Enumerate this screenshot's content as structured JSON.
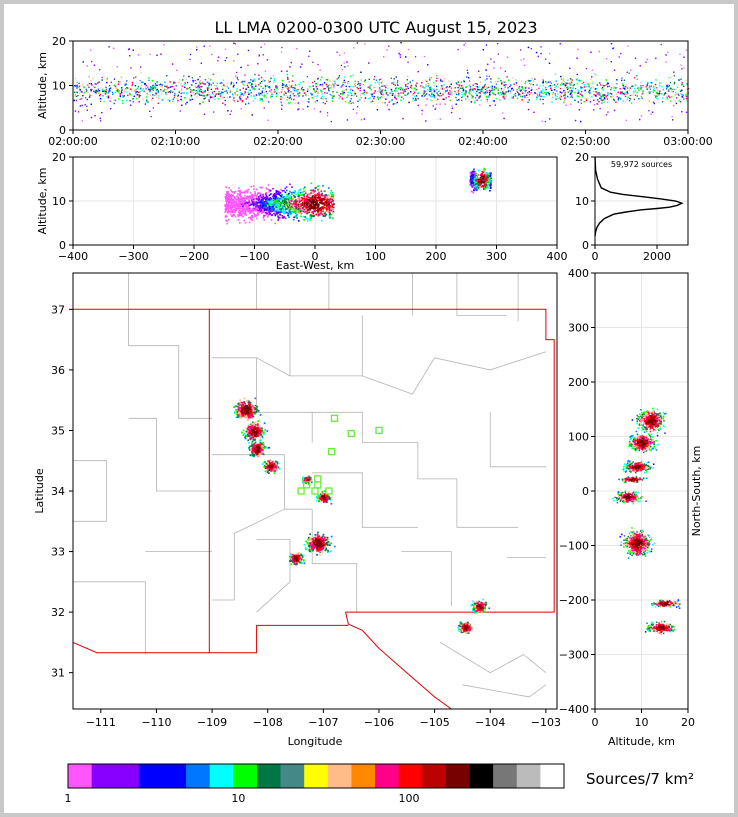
{
  "title": "LL LMA 0200-0300 UTC August 15, 2023",
  "chart_data": [
    {
      "type": "heatmap",
      "panel": "altitude-vs-time",
      "ylabel": "Altitude, km",
      "ylim": [
        0,
        20
      ],
      "y_ticks": [
        "0",
        "10",
        "20"
      ],
      "x_ticks": [
        "02:00:00",
        "02:10:00",
        "02:20:00",
        "02:30:00",
        "02:40:00",
        "02:50:00",
        "03:00:00"
      ],
      "x_tick_minutes": [
        0,
        10,
        20,
        30,
        40,
        50,
        60
      ],
      "xlim_minutes": [
        0,
        60
      ],
      "core_altitude_range_km": [
        4,
        14
      ],
      "max_altitude_km": 20
    },
    {
      "type": "heatmap",
      "panel": "altitude-vs-east-west",
      "xlabel": "East-West, km",
      "ylabel": "Altitude, km",
      "xlim": [
        -400,
        400
      ],
      "ylim": [
        0,
        20
      ],
      "x_ticks": [
        "−400",
        "−300",
        "−200",
        "−100",
        "0",
        "100",
        "200",
        "300",
        "400"
      ],
      "x_tick_values": [
        -400,
        -300,
        -200,
        -100,
        0,
        100,
        200,
        300,
        400
      ],
      "y_ticks": [
        "0",
        "10",
        "20"
      ],
      "clusters": [
        {
          "x_range": [
            -150,
            30
          ],
          "alt_range": [
            2,
            19
          ],
          "peak_x": 0,
          "peak_alt": 9.5
        },
        {
          "x_range": [
            255,
            290
          ],
          "alt_range": [
            9,
            20
          ],
          "peak_x": 275,
          "peak_alt": 15
        }
      ]
    },
    {
      "type": "line",
      "panel": "altitude-histogram",
      "annotation": "59,972 sources",
      "xlim": [
        0,
        3000
      ],
      "ylim": [
        0,
        20
      ],
      "x_ticks": [
        "0",
        "2000"
      ],
      "x_tick_values": [
        0,
        2000
      ],
      "y_ticks": [
        "0",
        "10",
        "20"
      ],
      "y_tick_values": [
        0,
        10,
        20
      ],
      "x": [
        0,
        20,
        60,
        150,
        300,
        600,
        1000,
        1500,
        2000,
        2400,
        2650,
        2800,
        2600,
        2100,
        1500,
        900,
        500,
        200,
        80,
        20,
        0
      ],
      "y": [
        2,
        3,
        4,
        5,
        6,
        7,
        7.5,
        8,
        8.3,
        8.6,
        9,
        9.5,
        10,
        10.5,
        11,
        11.5,
        12,
        13,
        15,
        17,
        20
      ]
    },
    {
      "type": "heatmap",
      "panel": "plan-view-map",
      "xlabel": "Longitude",
      "ylabel": "Latitude",
      "xlim": [
        -111.5,
        -102.8
      ],
      "ylim": [
        30.4,
        37.6
      ],
      "x_ticks": [
        "−111",
        "−110",
        "−109",
        "−108",
        "−107",
        "−106",
        "−105",
        "−104",
        "−103"
      ],
      "x_tick_values": [
        -111,
        -110,
        -109,
        -108,
        -107,
        -106,
        -105,
        -104,
        -103
      ],
      "y_ticks": [
        "31",
        "32",
        "33",
        "34",
        "35",
        "36",
        "37"
      ],
      "y_tick_values": [
        31,
        32,
        33,
        34,
        35,
        36,
        37
      ],
      "stations": [
        [
          -106.8,
          35.2
        ],
        [
          -106.5,
          34.95
        ],
        [
          -106.0,
          35.0
        ],
        [
          -106.85,
          34.65
        ],
        [
          -107.3,
          34.1
        ],
        [
          -107.1,
          34.2
        ],
        [
          -107.1,
          34.1
        ],
        [
          -107.4,
          34.0
        ],
        [
          -107.15,
          34.0
        ],
        [
          -106.9,
          34.0
        ]
      ],
      "clusters": [
        {
          "lon": -108.4,
          "lat": 35.35,
          "size": 0.35
        },
        {
          "lon": -108.25,
          "lat": 35.0,
          "size": 0.3
        },
        {
          "lon": -108.2,
          "lat": 34.7,
          "size": 0.25
        },
        {
          "lon": -107.95,
          "lat": 34.42,
          "size": 0.22
        },
        {
          "lon": -107.3,
          "lat": 34.2,
          "size": 0.12
        },
        {
          "lon": -107.0,
          "lat": 33.9,
          "size": 0.18
        },
        {
          "lon": -107.1,
          "lat": 33.15,
          "size": 0.35
        },
        {
          "lon": -107.5,
          "lat": 32.9,
          "size": 0.2
        },
        {
          "lon": -104.2,
          "lat": 32.1,
          "size": 0.2
        },
        {
          "lon": -104.45,
          "lat": 31.75,
          "size": 0.2
        }
      ]
    },
    {
      "type": "heatmap",
      "panel": "north-south-vs-altitude",
      "xlabel": "Altitude, km",
      "ylabel": "North-South, km",
      "xlim": [
        0,
        20
      ],
      "ylim": [
        -400,
        400
      ],
      "x_ticks": [
        "0",
        "10",
        "20"
      ],
      "x_tick_values": [
        0,
        10,
        20
      ],
      "y_ticks": [
        "−400",
        "−300",
        "−200",
        "−100",
        "0",
        "100",
        "200",
        "300",
        "400"
      ],
      "y_tick_values": [
        -400,
        -300,
        -200,
        -100,
        0,
        100,
        200,
        300,
        400
      ],
      "clusters": [
        {
          "ns": 130,
          "alt": 12,
          "spread_ns": 30
        },
        {
          "ns": 90,
          "alt": 10,
          "spread_ns": 25
        },
        {
          "ns": 45,
          "alt": 9,
          "spread_ns": 15
        },
        {
          "ns": 22,
          "alt": 8,
          "spread_ns": 8
        },
        {
          "ns": -10,
          "alt": 7,
          "spread_ns": 15
        },
        {
          "ns": -95,
          "alt": 9,
          "spread_ns": 35
        },
        {
          "ns": -205,
          "alt": 15,
          "spread_ns": 10
        },
        {
          "ns": -250,
          "alt": 14,
          "spread_ns": 15
        }
      ]
    }
  ],
  "colorbar": {
    "label": "Sources/7 km²",
    "tick_labels": [
      "1",
      "10",
      "100"
    ],
    "colors": [
      "#ff55ff",
      "#8800ff",
      "#8800ff",
      "#0000ff",
      "#0000ff",
      "#0077ff",
      "#00ffff",
      "#00ff00",
      "#007744",
      "#448888",
      "#ffff00",
      "#ffbb88",
      "#ff8800",
      "#ff0088",
      "#ff0000",
      "#bb0000",
      "#770000",
      "#000000",
      "#777777",
      "#bbbbbb",
      "#ffffff"
    ]
  }
}
